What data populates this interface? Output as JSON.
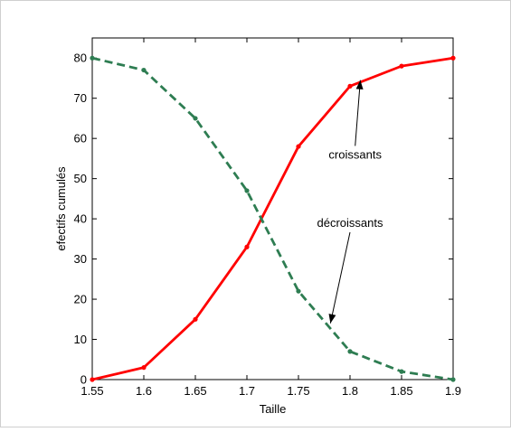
{
  "chart_data": {
    "type": "line",
    "title": "",
    "xlabel": "Taille",
    "ylabel": "efectifs cumulés",
    "xlim": [
      1.55,
      1.9
    ],
    "ylim": [
      0,
      85
    ],
    "grid": false,
    "x": [
      1.55,
      1.6,
      1.65,
      1.7,
      1.75,
      1.8,
      1.85,
      1.9
    ],
    "x_ticks": [
      "1.55",
      "1.6",
      "1.65",
      "1.7",
      "1.75",
      "1.8",
      "1.85",
      "1.9"
    ],
    "y_ticks": [
      "0",
      "10",
      "20",
      "30",
      "40",
      "50",
      "60",
      "70",
      "80"
    ],
    "series": [
      {
        "values": [
          0,
          3,
          15,
          33,
          58,
          73,
          78,
          80
        ],
        "color": "#ff0000",
        "style": "solid"
      },
      {
        "values": [
          80,
          77,
          65,
          47,
          22,
          7,
          2,
          0
        ],
        "color": "#2e7d52",
        "style": "dashed"
      }
    ],
    "annotations": [
      {
        "text": "croissants",
        "point": [
          1.81,
          74.5
        ],
        "text_pos": [
          1.805,
          55
        ]
      },
      {
        "text": "décroissants",
        "point": [
          1.781,
          14
        ],
        "text_pos": [
          1.8,
          38
        ]
      }
    ]
  }
}
